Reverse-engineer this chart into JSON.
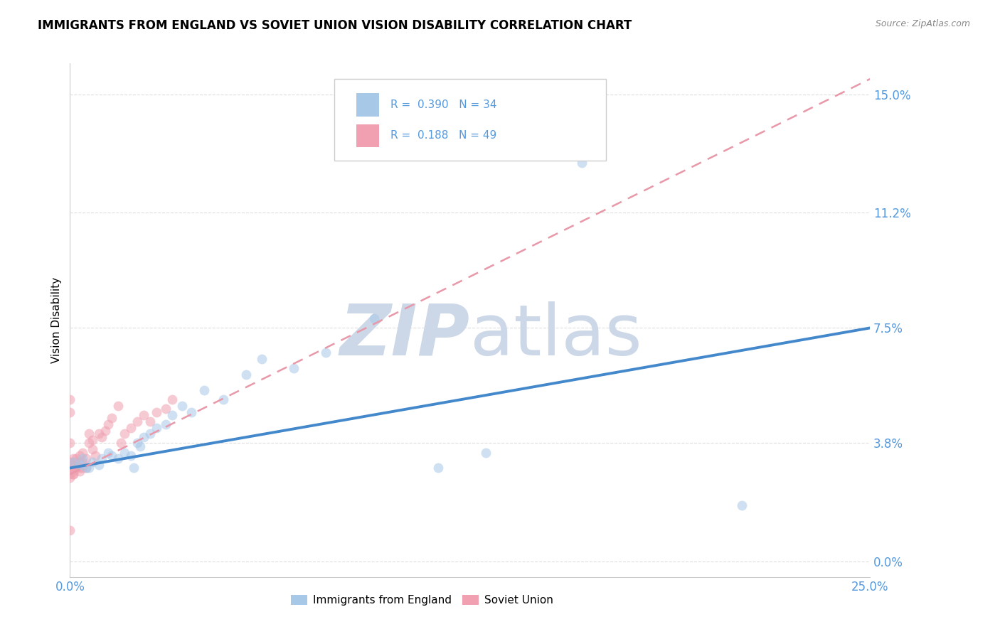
{
  "title": "IMMIGRANTS FROM ENGLAND VS SOVIET UNION VISION DISABILITY CORRELATION CHART",
  "source": "Source: ZipAtlas.com",
  "ylabel_label": "Vision Disability",
  "xlim": [
    0.0,
    0.25
  ],
  "ylim": [
    -0.005,
    0.16
  ],
  "ytick_vals": [
    0.0,
    0.038,
    0.075,
    0.112,
    0.15
  ],
  "ytick_labels": [
    "0.0%",
    "3.8%",
    "7.5%",
    "11.2%",
    "15.0%"
  ],
  "xtick_vals": [
    0.0,
    0.05,
    0.1,
    0.15,
    0.2,
    0.25
  ],
  "xtick_labels": [
    "0.0%",
    "",
    "",
    "",
    "",
    "25.0%"
  ],
  "england_color": "#a8c8e8",
  "soviet_color": "#f0a0b0",
  "england_line_color": "#4488cc",
  "soviet_line_color": "#e898a8",
  "marker_size": 100,
  "marker_alpha": 0.55,
  "title_fontsize": 12,
  "tick_color": "#5599dd",
  "grid_color": "#dddddd",
  "watermark_color": "#ccd8e8",
  "background_color": "#ffffff",
  "england_x": [
    0.001,
    0.003,
    0.004,
    0.005,
    0.006,
    0.007,
    0.009,
    0.01,
    0.012,
    0.013,
    0.015,
    0.017,
    0.019,
    0.02,
    0.021,
    0.022,
    0.023,
    0.025,
    0.027,
    0.03,
    0.032,
    0.035,
    0.038,
    0.042,
    0.048,
    0.055,
    0.06,
    0.07,
    0.08,
    0.095,
    0.115,
    0.13,
    0.16,
    0.21
  ],
  "england_y": [
    0.032,
    0.031,
    0.033,
    0.03,
    0.03,
    0.032,
    0.031,
    0.033,
    0.035,
    0.034,
    0.033,
    0.035,
    0.034,
    0.03,
    0.038,
    0.037,
    0.04,
    0.041,
    0.043,
    0.044,
    0.047,
    0.05,
    0.048,
    0.055,
    0.052,
    0.06,
    0.065,
    0.062,
    0.067,
    0.078,
    0.03,
    0.035,
    0.128,
    0.018
  ],
  "soviet_x": [
    0.0,
    0.0,
    0.0,
    0.0,
    0.0,
    0.001,
    0.001,
    0.001,
    0.001,
    0.001,
    0.001,
    0.001,
    0.002,
    0.002,
    0.002,
    0.002,
    0.003,
    0.003,
    0.003,
    0.003,
    0.004,
    0.004,
    0.004,
    0.005,
    0.005,
    0.006,
    0.006,
    0.007,
    0.007,
    0.008,
    0.009,
    0.01,
    0.011,
    0.012,
    0.013,
    0.015,
    0.016,
    0.017,
    0.019,
    0.021,
    0.023,
    0.025,
    0.027,
    0.03,
    0.032,
    0.0,
    0.0,
    0.0,
    0.0
  ],
  "soviet_y": [
    0.03,
    0.03,
    0.028,
    0.027,
    0.032,
    0.029,
    0.028,
    0.03,
    0.031,
    0.032,
    0.028,
    0.033,
    0.03,
    0.03,
    0.031,
    0.033,
    0.03,
    0.029,
    0.032,
    0.034,
    0.03,
    0.032,
    0.035,
    0.03,
    0.033,
    0.038,
    0.041,
    0.036,
    0.039,
    0.034,
    0.041,
    0.04,
    0.042,
    0.044,
    0.046,
    0.05,
    0.038,
    0.041,
    0.043,
    0.045,
    0.047,
    0.045,
    0.048,
    0.049,
    0.052,
    0.052,
    0.048,
    0.038,
    0.01
  ],
  "eng_line_x0": 0.0,
  "eng_line_x1": 0.25,
  "eng_line_y0": 0.03,
  "eng_line_y1": 0.075,
  "sov_line_x0": 0.0,
  "sov_line_x1": 0.25,
  "sov_line_y0": 0.028,
  "sov_line_y1": 0.155
}
